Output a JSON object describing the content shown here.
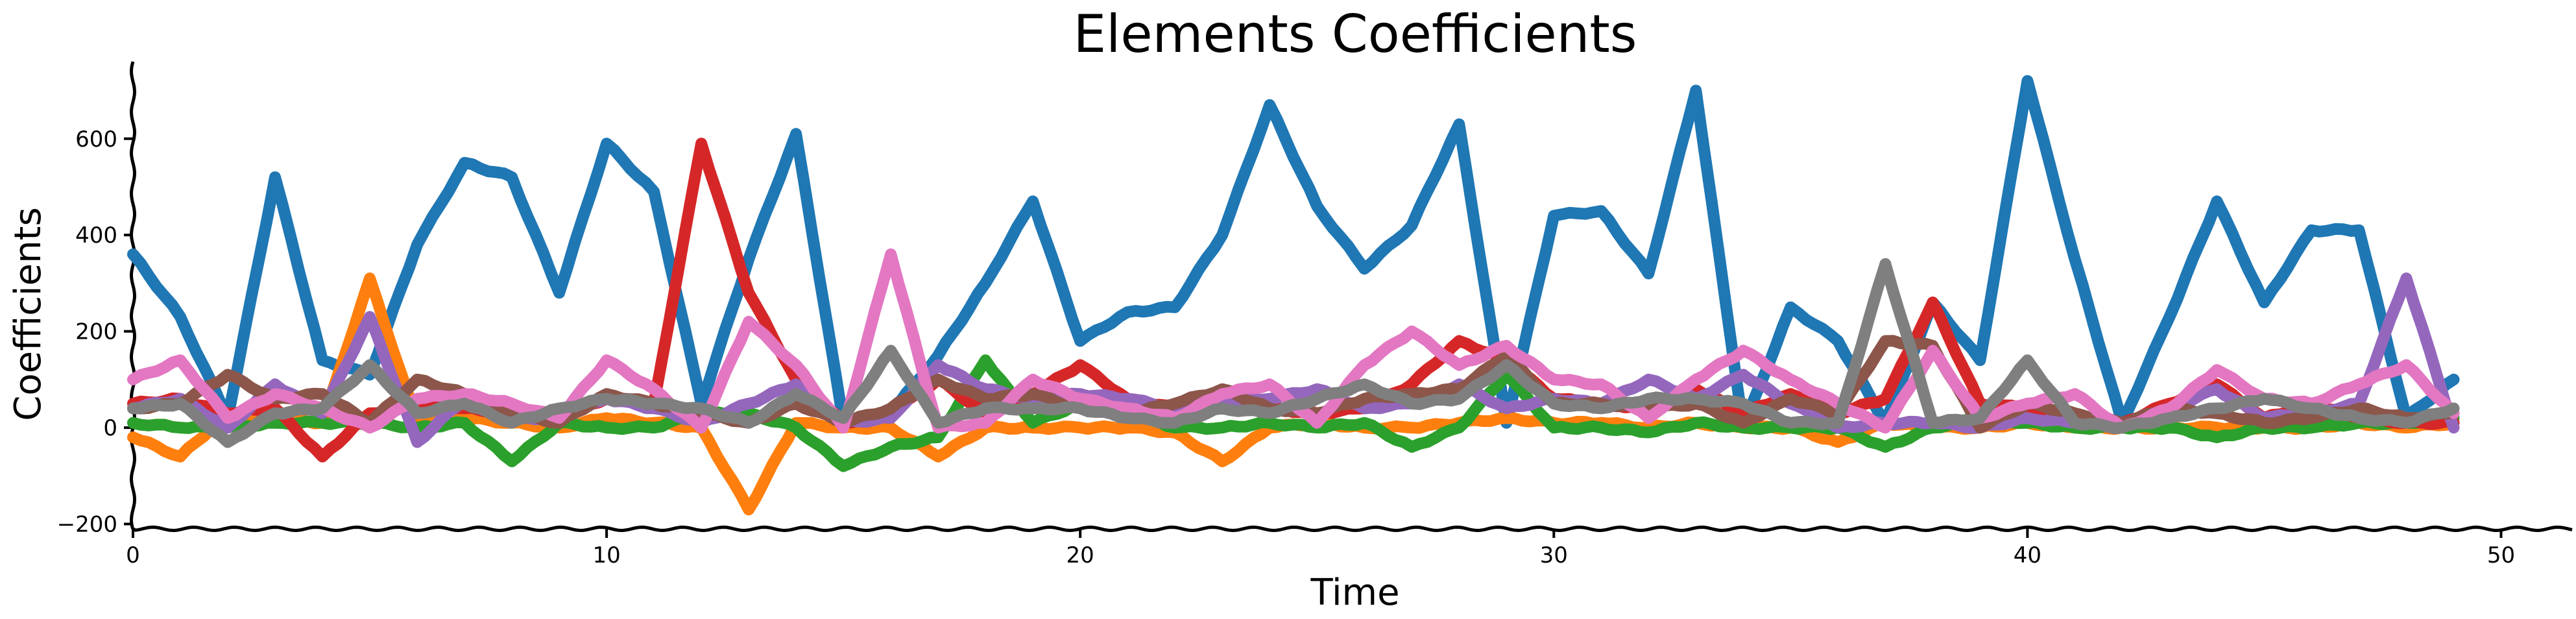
{
  "chart_data": {
    "type": "line",
    "title": "Elements Coefficients",
    "xlabel": "Time",
    "ylabel": "Coefficients",
    "xlim": [
      0,
      51.5
    ],
    "ylim": [
      -210,
      760
    ],
    "xticks": [
      0,
      10,
      20,
      30,
      40,
      50
    ],
    "yticks": [
      -200,
      0,
      200,
      400,
      600
    ],
    "grid": false,
    "legend": "none",
    "x": [
      0,
      1,
      2,
      3,
      4,
      5,
      6,
      7,
      8,
      9,
      10,
      11,
      12,
      13,
      14,
      15,
      16,
      17,
      18,
      19,
      20,
      21,
      22,
      23,
      24,
      25,
      26,
      27,
      28,
      29,
      30,
      31,
      32,
      33,
      34,
      35,
      36,
      37,
      38,
      39,
      40,
      41,
      42,
      43,
      44,
      45,
      46,
      47,
      48,
      49
    ],
    "series": [
      {
        "color": "#1f77b4",
        "values": [
          360,
          230,
          20,
          520,
          140,
          110,
          380,
          550,
          520,
          280,
          590,
          490,
          50,
          350,
          610,
          10,
          30,
          150,
          300,
          470,
          180,
          240,
          250,
          400,
          670,
          460,
          330,
          420,
          630,
          10,
          440,
          450,
          320,
          700,
          0,
          250,
          180,
          10,
          260,
          140,
          720,
          350,
          10,
          230,
          470,
          260,
          410,
          410,
          20,
          100
        ]
      },
      {
        "color": "#ff7f0e",
        "values": [
          -20,
          -60,
          30,
          20,
          10,
          310,
          10,
          20,
          10,
          0,
          20,
          10,
          0,
          -170,
          10,
          0,
          0,
          -60,
          0,
          0,
          0,
          0,
          -10,
          -70,
          0,
          10,
          0,
          0,
          10,
          20,
          10,
          10,
          0,
          10,
          0,
          0,
          -30,
          10,
          0,
          0,
          10,
          0,
          0,
          0,
          0,
          0,
          0,
          10,
          0,
          10
        ]
      },
      {
        "color": "#2ca02c",
        "values": [
          10,
          0,
          0,
          10,
          10,
          10,
          0,
          10,
          -70,
          10,
          0,
          0,
          30,
          30,
          0,
          -80,
          -40,
          -20,
          140,
          10,
          50,
          30,
          0,
          0,
          10,
          0,
          10,
          -40,
          0,
          110,
          0,
          0,
          -10,
          10,
          0,
          0,
          0,
          -40,
          0,
          20,
          10,
          0,
          0,
          0,
          -20,
          0,
          0,
          10,
          10,
          20
        ]
      },
      {
        "color": "#d62728",
        "values": [
          50,
          60,
          30,
          40,
          -60,
          30,
          50,
          40,
          30,
          30,
          60,
          50,
          590,
          280,
          100,
          10,
          30,
          100,
          30,
          70,
          130,
          60,
          40,
          60,
          40,
          30,
          40,
          90,
          180,
          140,
          60,
          50,
          40,
          80,
          30,
          70,
          30,
          60,
          260,
          50,
          40,
          20,
          10,
          50,
          90,
          20,
          50,
          20,
          10,
          10
        ]
      },
      {
        "color": "#9467bd",
        "values": [
          40,
          60,
          0,
          90,
          30,
          230,
          -30,
          60,
          20,
          20,
          60,
          40,
          10,
          50,
          90,
          10,
          20,
          130,
          80,
          60,
          70,
          60,
          40,
          50,
          60,
          80,
          40,
          50,
          90,
          40,
          60,
          50,
          100,
          60,
          110,
          50,
          0,
          10,
          10,
          0,
          20,
          10,
          0,
          40,
          80,
          20,
          30,
          50,
          310,
          0
        ]
      },
      {
        "color": "#8c564b",
        "values": [
          40,
          50,
          110,
          60,
          70,
          10,
          100,
          70,
          30,
          10,
          70,
          50,
          30,
          10,
          50,
          10,
          40,
          100,
          60,
          70,
          40,
          30,
          50,
          80,
          40,
          30,
          60,
          70,
          80,
          150,
          50,
          50,
          40,
          50,
          10,
          60,
          30,
          180,
          170,
          0,
          50,
          30,
          10,
          40,
          30,
          10,
          20,
          40,
          20,
          30
        ]
      },
      {
        "color": "#e377c2",
        "values": [
          100,
          140,
          20,
          70,
          40,
          0,
          60,
          70,
          50,
          20,
          140,
          80,
          0,
          220,
          130,
          0,
          360,
          0,
          10,
          100,
          60,
          40,
          20,
          70,
          90,
          10,
          130,
          200,
          130,
          170,
          100,
          90,
          20,
          100,
          160,
          100,
          50,
          0,
          160,
          20,
          50,
          70,
          0,
          40,
          120,
          60,
          50,
          90,
          130,
          30
        ]
      },
      {
        "color": "#7f7f7f",
        "values": [
          40,
          50,
          -30,
          30,
          40,
          130,
          30,
          50,
          10,
          40,
          60,
          50,
          40,
          10,
          70,
          20,
          160,
          10,
          40,
          40,
          40,
          20,
          10,
          40,
          30,
          60,
          90,
          50,
          60,
          130,
          50,
          40,
          60,
          60,
          50,
          10,
          10,
          340,
          10,
          20,
          140,
          10,
          0,
          20,
          40,
          60,
          40,
          20,
          10,
          40
        ]
      }
    ]
  }
}
